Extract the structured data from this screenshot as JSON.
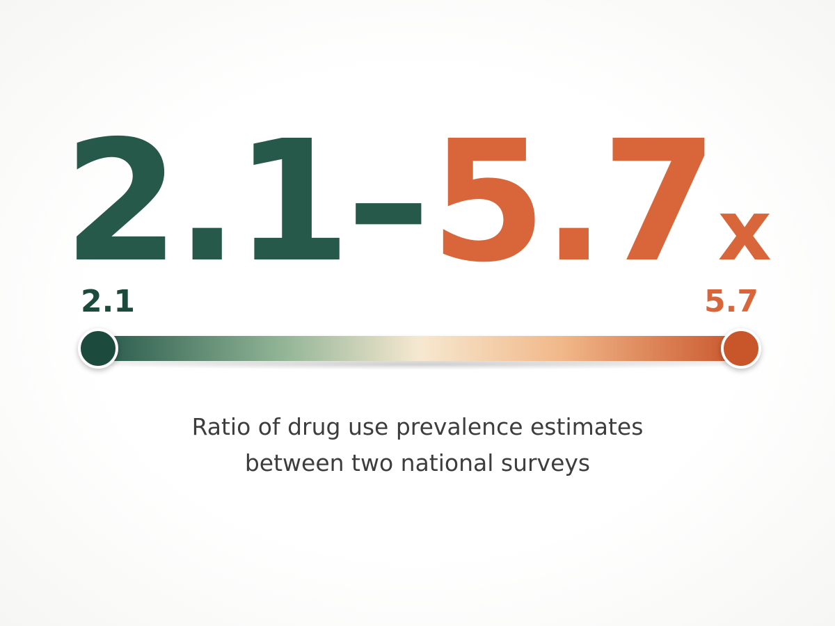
{
  "headline": {
    "low_value": "2.1",
    "separator": "–",
    "high_value": "5.7",
    "unit": "x"
  },
  "range_bar": {
    "min_label": "2.1",
    "max_label": "5.7"
  },
  "caption": {
    "line1": "Ratio of drug use prevalence estimates",
    "line2": "between two national surveys"
  },
  "colors": {
    "low": "#27594b",
    "high": "#d9663a",
    "low_dark": "#1c4a3d",
    "mid_light": "#f6e8d0",
    "high_dark": "#c9552b"
  }
}
